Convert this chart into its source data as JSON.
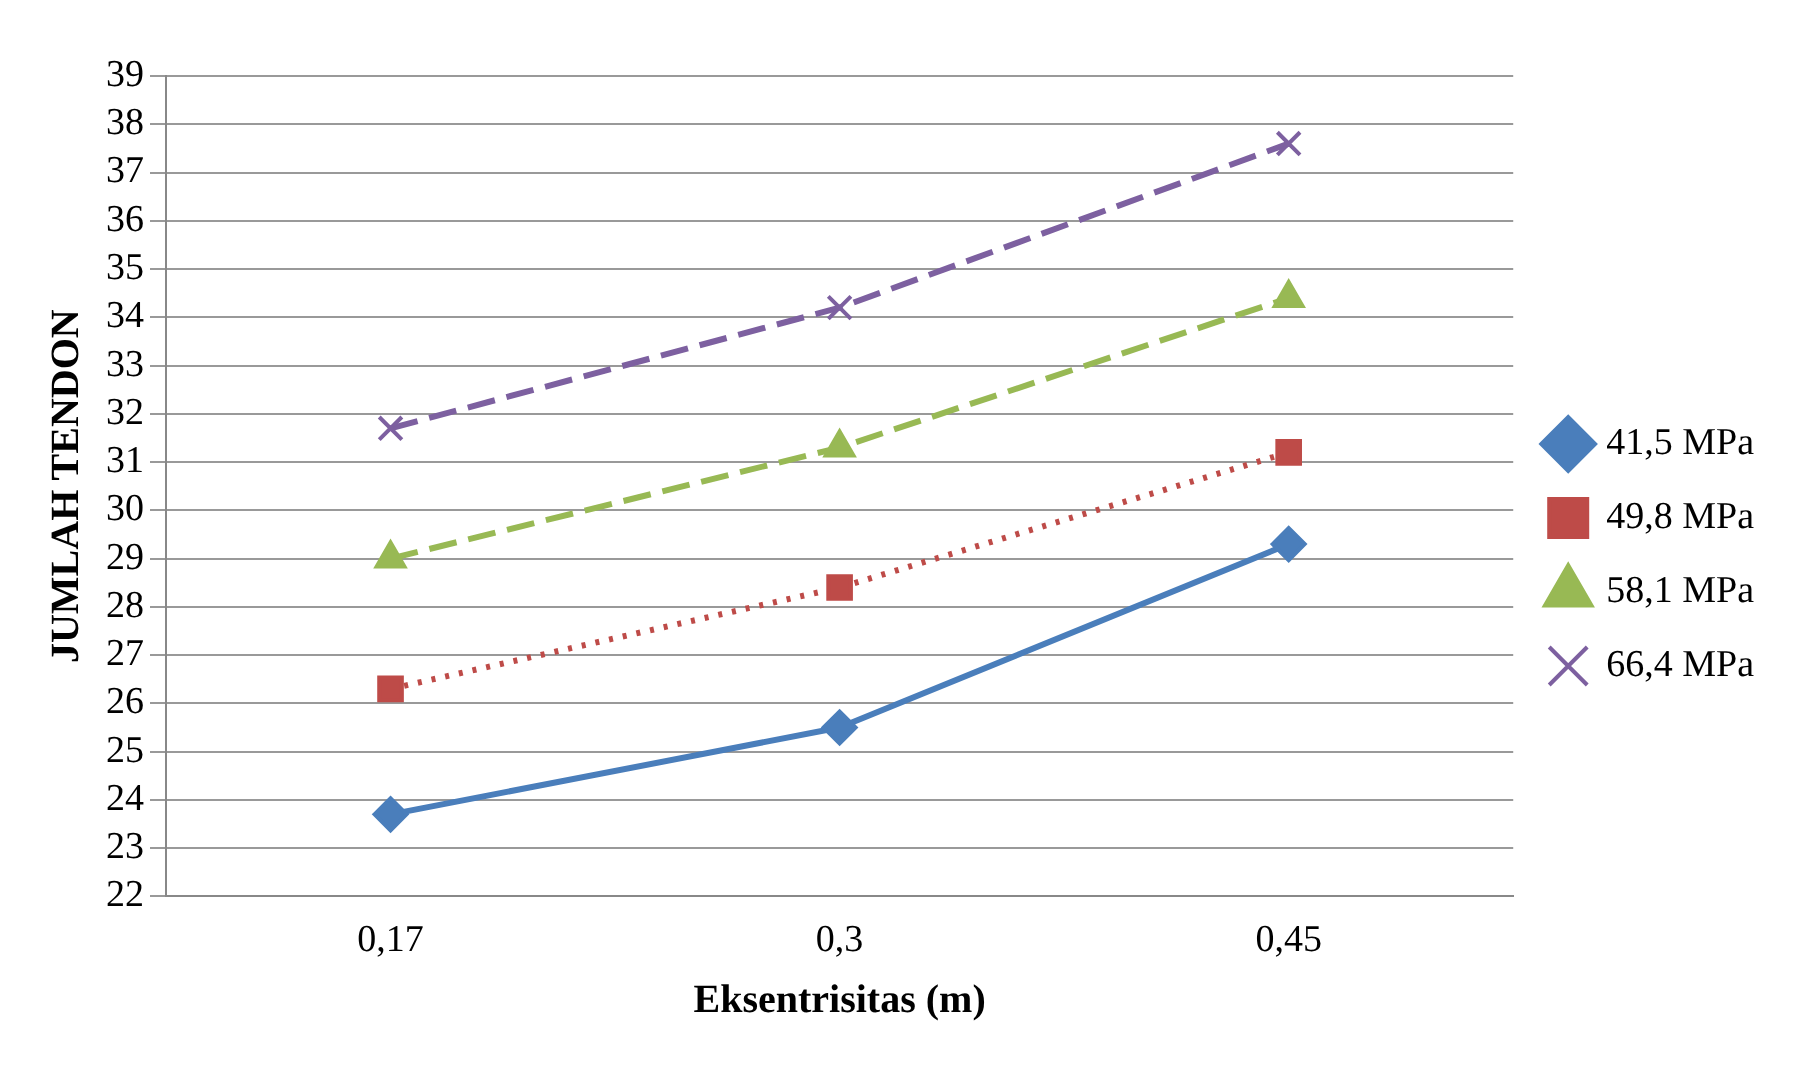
{
  "chart_data": {
    "type": "line",
    "xlabel": "Eksentrisitas (m)",
    "ylabel": "JUMLAH TENDON",
    "categories": [
      "0,17",
      "0,3",
      "0,45"
    ],
    "series": [
      {
        "name": "41,5 MPa",
        "color": "#4a7ebb",
        "values": [
          23.7,
          25.5,
          29.3
        ],
        "marker": "diamond",
        "line_style": "solid"
      },
      {
        "name": "49,8 MPa",
        "color": "#be4b48",
        "values": [
          26.3,
          28.4,
          31.2
        ],
        "marker": "square",
        "line_style": "dotted"
      },
      {
        "name": "58,1 MPa",
        "color": "#98b954",
        "values": [
          29.0,
          31.3,
          34.4
        ],
        "marker": "triangle",
        "line_style": "dashed"
      },
      {
        "name": "66,4 MPa",
        "color": "#7d60a0",
        "values": [
          31.7,
          34.2,
          37.6
        ],
        "marker": "cross",
        "line_style": "dashed"
      }
    ],
    "ylim": [
      22,
      39
    ],
    "yticks": [
      22,
      23,
      24,
      25,
      26,
      27,
      28,
      29,
      30,
      31,
      32,
      33,
      34,
      35,
      36,
      37,
      38,
      39
    ],
    "grid": "y",
    "legend": "right"
  }
}
